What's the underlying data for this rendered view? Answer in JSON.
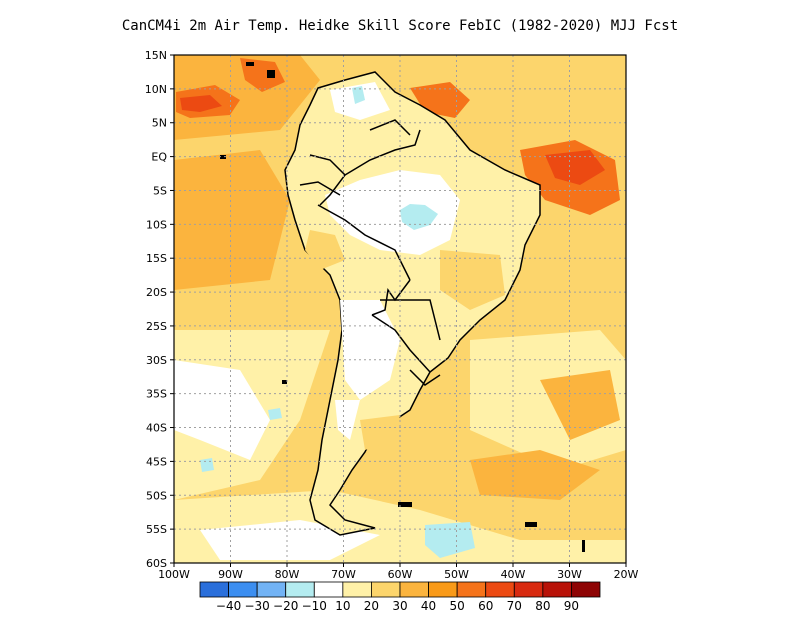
{
  "title": "CanCM4i  2m Air Temp. Heidke Skill Score FebIC (1982-2020) MJJ Fcst",
  "latitude_labels": [
    "15N",
    "10N",
    "5N",
    "EQ",
    "5S",
    "10S",
    "15S",
    "20S",
    "25S",
    "30S",
    "35S",
    "40S",
    "45S",
    "50S",
    "55S",
    "60S"
  ],
  "longitude_labels": [
    "100W",
    "90W",
    "80W",
    "70W",
    "60W",
    "50W",
    "40W",
    "30W",
    "20W"
  ],
  "colorbar": {
    "colors": [
      "#2a6fdb",
      "#3c8ef0",
      "#72b3f5",
      "#b4ecf0",
      "#ffffff",
      "#fff1a8",
      "#fcd56c",
      "#fbb43e",
      "#f99a18",
      "#f5731a",
      "#ec4a12",
      "#d82a10",
      "#b81208",
      "#8e0404"
    ],
    "labels": [
      "-40",
      "-30",
      "-20",
      "-10",
      "10",
      "20",
      "30",
      "40",
      "50",
      "60",
      "70",
      "80",
      "90"
    ]
  },
  "legend_colors": {
    "ocean_mid": "#fcd56c",
    "ocean_low": "#fff1a8",
    "hotspot": "#f5731a",
    "hotspot_core": "#ec4a12",
    "negative": "#b4ecf0",
    "land_neutral": "#ffffff",
    "coast": "#000000"
  }
}
